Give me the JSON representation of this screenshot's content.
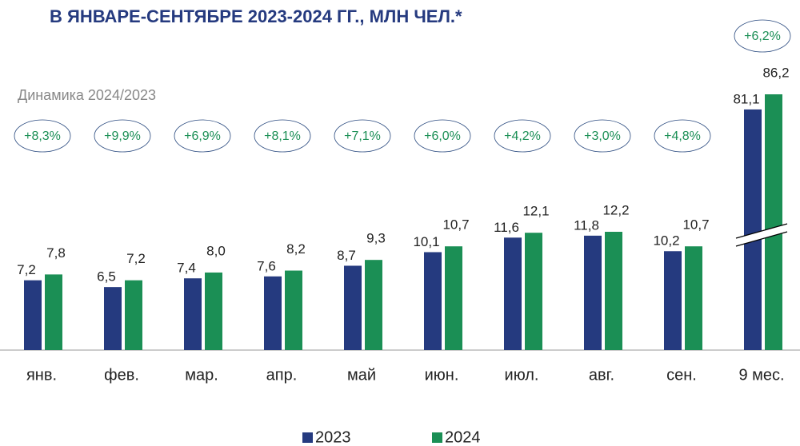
{
  "chart_data": {
    "type": "bar",
    "title": "В ЯНВАРЕ-СЕНТЯБРЕ 2023-2024 ГГ., МЛН ЧЕЛ.*",
    "subtitle": "Динамика 2024/2023",
    "categories": [
      "янв.",
      "фев.",
      "мар.",
      "апр.",
      "май",
      "июн.",
      "июл.",
      "авг.",
      "сен.",
      "9 мес."
    ],
    "series": [
      {
        "name": "2023",
        "color": "#253a7f",
        "values": [
          7.2,
          6.5,
          7.4,
          7.6,
          8.7,
          10.1,
          11.6,
          11.8,
          10.2,
          81.1
        ],
        "value_labels": [
          "7,2",
          "6,5",
          "7,4",
          "7,6",
          "8,7",
          "10,1",
          "11,6",
          "11,8",
          "10,2",
          "81,1"
        ]
      },
      {
        "name": "2024",
        "color": "#1b8f55",
        "values": [
          7.8,
          7.2,
          8.0,
          8.2,
          9.3,
          10.7,
          12.1,
          12.2,
          10.7,
          86.2
        ],
        "value_labels": [
          "7,8",
          "7,2",
          "8,0",
          "8,2",
          "9,3",
          "10,7",
          "12,1",
          "12,2",
          "10,7",
          "86,2"
        ]
      }
    ],
    "annotations": [
      "+8,3%",
      "+9,9%",
      "+6,9%",
      "+8,1%",
      "+7,1%",
      "+6,0%",
      "+4,2%",
      "+3,0%",
      "+4,8%",
      "+6,2%"
    ],
    "axis_break": true,
    "legend": "bottom"
  }
}
